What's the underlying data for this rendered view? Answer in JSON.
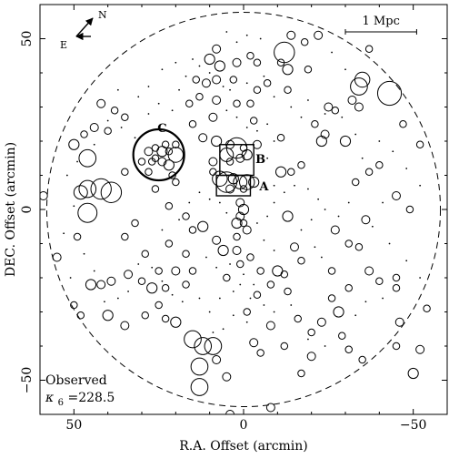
{
  "chart_data": {
    "type": "scatter",
    "xlabel": "R.A. Offset (arcmin)",
    "ylabel": "DEC. Offset (arcmin)",
    "xlim": [
      60,
      -60
    ],
    "ylim": [
      -60,
      60
    ],
    "x_ticks": [
      50,
      0,
      -50
    ],
    "y_ticks": [
      50,
      0,
      -50
    ],
    "x_tick_labels": [
      "50",
      "0",
      "−50"
    ],
    "y_tick_labels": [
      "50",
      "0",
      "−50"
    ],
    "grid": false,
    "compass": {
      "north": "N",
      "east": "E"
    },
    "scale_bar": {
      "label": "1 Mpc",
      "x_start": -30,
      "x_end": -51,
      "y": 52
    },
    "boundary_circle": {
      "center": [
        0,
        0
      ],
      "radius": 58
    },
    "observed_label": "Observed",
    "kappa_label": "κ",
    "kappa_subscript": "6",
    "kappa_value": "=228.5",
    "labeled_structures": [
      {
        "name": "A",
        "x": -6,
        "y": 7
      },
      {
        "name": "B",
        "x": -5,
        "y": 15
      },
      {
        "name": "C",
        "x": 24,
        "y": 24
      }
    ],
    "highlight_circle_c": {
      "x": 25,
      "y": 16,
      "r": 7.5
    },
    "boxes": [
      {
        "name": "A-box",
        "x1": 8,
        "x2": -2,
        "y1": 10,
        "y2": 4
      },
      {
        "name": "B-box",
        "x1": 7,
        "x2": -3,
        "y1": 19,
        "y2": 10
      }
    ],
    "circles": [
      [
        8,
        20,
        1.5
      ],
      [
        4,
        19,
        1.2
      ],
      [
        2,
        18,
        3.0
      ],
      [
        0,
        18,
        1.0
      ],
      [
        5,
        16,
        2.0
      ],
      [
        1,
        15,
        1.2
      ],
      [
        -1,
        16,
        1.5
      ],
      [
        7,
        9,
        2.2
      ],
      [
        5,
        8,
        3.0
      ],
      [
        3,
        9,
        1.5
      ],
      [
        1,
        8,
        2.0
      ],
      [
        -1,
        8,
        2.2
      ],
      [
        -3,
        8,
        1.5
      ],
      [
        4,
        6,
        1.2
      ],
      [
        0,
        6,
        1.0
      ],
      [
        1,
        2,
        1.2
      ],
      [
        0,
        0,
        1.5
      ],
      [
        1,
        -2,
        1.2
      ],
      [
        2,
        -4,
        1.5
      ],
      [
        0,
        -4,
        1.0
      ],
      [
        -1,
        -6,
        1.2
      ],
      [
        2,
        -8,
        1.0
      ],
      [
        28,
        17,
        1.2
      ],
      [
        26,
        18,
        1.0
      ],
      [
        24,
        17,
        1.5
      ],
      [
        22,
        17,
        1.0
      ],
      [
        26,
        15,
        1.0
      ],
      [
        24,
        14,
        1.2
      ],
      [
        22,
        13,
        1.5
      ],
      [
        20,
        16,
        2.2
      ],
      [
        23,
        19,
        1.0
      ],
      [
        27,
        14,
        1.0
      ],
      [
        20,
        19,
        1.0
      ],
      [
        46,
        6,
        2.5
      ],
      [
        48,
        5,
        2.0
      ],
      [
        42,
        6,
        3.0
      ],
      [
        39,
        5,
        3.0
      ],
      [
        46,
        -1,
        2.8
      ],
      [
        46,
        15,
        2.5
      ],
      [
        50,
        19,
        1.5
      ],
      [
        47,
        22,
        1.0
      ],
      [
        44,
        24,
        1.2
      ],
      [
        40,
        23,
        1.0
      ],
      [
        42,
        31,
        1.2
      ],
      [
        38,
        29,
        1.0
      ],
      [
        35,
        27,
        1.0
      ],
      [
        59,
        4,
        1.2
      ],
      [
        55,
        -14,
        1.2
      ],
      [
        49,
        -8,
        1.0
      ],
      [
        45,
        -22,
        1.5
      ],
      [
        42,
        -22,
        1.2
      ],
      [
        39,
        -21,
        1.2
      ],
      [
        34,
        -19,
        1.2
      ],
      [
        30,
        -21,
        1.0
      ],
      [
        27,
        -23,
        1.5
      ],
      [
        23,
        -23,
        1.0
      ],
      [
        40,
        -31,
        1.5
      ],
      [
        35,
        -34,
        1.2
      ],
      [
        29,
        -31,
        1.0
      ],
      [
        25,
        -28,
        1.0
      ],
      [
        23,
        -32,
        1.0
      ],
      [
        48,
        -31,
        1.0
      ],
      [
        50,
        -28,
        1.0
      ],
      [
        15,
        -38,
        2.5
      ],
      [
        12,
        -40,
        2.5
      ],
      [
        9,
        -40,
        2.5
      ],
      [
        20,
        -33,
        1.5
      ],
      [
        13,
        -46,
        2.5
      ],
      [
        13,
        -52,
        2.5
      ],
      [
        8,
        -44,
        1.2
      ],
      [
        5,
        -49,
        1.2
      ],
      [
        4,
        -60,
        1.2
      ],
      [
        -8,
        -58,
        1.2
      ],
      [
        -17,
        -48,
        1.0
      ],
      [
        -20,
        -43,
        1.2
      ],
      [
        -31,
        -41,
        1.0
      ],
      [
        -35,
        -44,
        1.0
      ],
      [
        -45,
        -40,
        1.0
      ],
      [
        -50,
        -48,
        1.5
      ],
      [
        -52,
        -41,
        1.2
      ],
      [
        -46,
        -33,
        1.2
      ],
      [
        -54,
        -29,
        1.0
      ],
      [
        -45,
        -23,
        1.0
      ],
      [
        -40,
        -21,
        1.0
      ],
      [
        -45,
        -20,
        1.0
      ],
      [
        -37,
        -18,
        1.2
      ],
      [
        -31,
        -23,
        1.0
      ],
      [
        -28,
        -30,
        1.5
      ],
      [
        -26,
        -26,
        1.0
      ],
      [
        -23,
        -33,
        1.2
      ],
      [
        -20,
        -36,
        1.0
      ],
      [
        -29,
        -37,
        1.0
      ],
      [
        -13,
        -24,
        1.0
      ],
      [
        -8,
        -34,
        1.2
      ],
      [
        -3,
        -39,
        1.2
      ],
      [
        -5,
        -42,
        1.0
      ],
      [
        -12,
        -40,
        1.0
      ],
      [
        -16,
        -32,
        1.0
      ],
      [
        15,
        25,
        1.0
      ],
      [
        12,
        21,
        1.2
      ],
      [
        8,
        32,
        1.2
      ],
      [
        13,
        33,
        1.0
      ],
      [
        16,
        31,
        1.0
      ],
      [
        8,
        38,
        1.2
      ],
      [
        7,
        42,
        1.5
      ],
      [
        2,
        43,
        1.2
      ],
      [
        -2,
        45,
        1.0
      ],
      [
        -4,
        43,
        1.0
      ],
      [
        -11,
        43,
        1.0
      ],
      [
        -13,
        35,
        1.0
      ],
      [
        -13,
        41,
        1.5
      ],
      [
        -12,
        46,
        3.0
      ],
      [
        -14,
        51,
        1.2
      ],
      [
        -18,
        49,
        1.0
      ],
      [
        -22,
        51,
        1.2
      ],
      [
        -25,
        30,
        1.2
      ],
      [
        -21,
        25,
        1.0
      ],
      [
        -24,
        22,
        1.2
      ],
      [
        -23,
        20,
        1.5
      ],
      [
        -30,
        20,
        1.5
      ],
      [
        -27,
        29,
        1.0
      ],
      [
        -32,
        32,
        1.2
      ],
      [
        -34,
        30,
        1.2
      ],
      [
        -34,
        36,
        2.5
      ],
      [
        -35,
        38,
        2.2
      ],
      [
        -43,
        34,
        3.5
      ],
      [
        -37,
        47,
        1.0
      ],
      [
        -47,
        25,
        1.0
      ],
      [
        -52,
        19,
        1.0
      ],
      [
        -40,
        13,
        1.0
      ],
      [
        -37,
        11,
        1.0
      ],
      [
        -33,
        8,
        1.0
      ],
      [
        -45,
        4,
        1.2
      ],
      [
        -49,
        0,
        1.0
      ],
      [
        -36,
        -3,
        1.2
      ],
      [
        -27,
        -6,
        1.2
      ],
      [
        -31,
        -10,
        1.0
      ],
      [
        -34,
        -11,
        1.0
      ],
      [
        -26,
        -18,
        1.0
      ],
      [
        -17,
        -15,
        1.0
      ],
      [
        -15,
        -11,
        1.2
      ],
      [
        -13,
        -2,
        1.5
      ],
      [
        -11,
        11,
        1.5
      ],
      [
        -14,
        11,
        1.0
      ],
      [
        -17,
        13,
        1.0
      ],
      [
        -11,
        21,
        1.0
      ],
      [
        -4,
        19,
        1.2
      ],
      [
        -3,
        26,
        1.0
      ],
      [
        -2,
        31,
        1.0
      ],
      [
        -4,
        35,
        1.0
      ],
      [
        2,
        31,
        1.0
      ],
      [
        9,
        27,
        1.2
      ],
      [
        4,
        14,
        1.0
      ],
      [
        9,
        11,
        1.0
      ],
      [
        9,
        14,
        1.2
      ],
      [
        21,
        10,
        1.0
      ],
      [
        20,
        8,
        1.0
      ],
      [
        26,
        6,
        1.0
      ],
      [
        35,
        11,
        1.0
      ],
      [
        30,
        14,
        1.0
      ],
      [
        28,
        11,
        1.0
      ],
      [
        22,
        1,
        1.0
      ],
      [
        17,
        -2,
        1.0
      ],
      [
        12,
        -5,
        1.5
      ],
      [
        15,
        -6,
        1.0
      ],
      [
        8,
        -9,
        1.2
      ],
      [
        6,
        -12,
        1.5
      ],
      [
        2,
        -12,
        1.2
      ],
      [
        1,
        -16,
        1.0
      ],
      [
        -2,
        -14,
        1.0
      ],
      [
        -5,
        -18,
        1.0
      ],
      [
        -10,
        -18,
        1.5
      ],
      [
        -12,
        -19,
        1.0
      ],
      [
        -8,
        -22,
        1.0
      ],
      [
        -4,
        -25,
        1.0
      ],
      [
        -1,
        -30,
        1.0
      ],
      [
        5,
        -20,
        1.0
      ],
      [
        15,
        -18,
        1.0
      ],
      [
        20,
        -18,
        1.2
      ],
      [
        17,
        -22,
        1.0
      ],
      [
        17,
        -13,
        1.0
      ],
      [
        22,
        -10,
        1.0
      ],
      [
        25,
        -18,
        1.0
      ],
      [
        29,
        -13,
        1.0
      ],
      [
        35,
        -8,
        1.0
      ],
      [
        32,
        -4,
        1.0
      ],
      [
        10,
        44,
        1.5
      ],
      [
        8,
        47,
        1.2
      ],
      [
        3,
        38,
        1.0
      ],
      [
        11,
        37,
        1.2
      ],
      [
        14,
        38,
        1.0
      ],
      [
        -7,
        37,
        1.0
      ],
      [
        -19,
        41,
        1.0
      ]
    ],
    "dots": [
      [
        15,
        44
      ],
      [
        13,
        42
      ],
      [
        10,
        40
      ],
      [
        6,
        36
      ],
      [
        4,
        35
      ],
      [
        -1,
        37
      ],
      [
        -6,
        39
      ],
      [
        -9,
        33
      ],
      [
        -14,
        30
      ],
      [
        -17,
        27
      ],
      [
        -19,
        32
      ],
      [
        -24,
        28
      ],
      [
        -29,
        27
      ],
      [
        -33,
        22
      ],
      [
        -40,
        20
      ],
      [
        -44,
        17
      ],
      [
        -48,
        12
      ],
      [
        -52,
        7
      ],
      [
        -41,
        2
      ],
      [
        -38,
        -5
      ],
      [
        -43,
        -10
      ],
      [
        -48,
        -15
      ],
      [
        -52,
        -20
      ],
      [
        -41,
        -26
      ],
      [
        -36,
        -27
      ],
      [
        -33,
        -31
      ],
      [
        -24,
        -40
      ],
      [
        -19,
        -38
      ],
      [
        -14,
        -28
      ],
      [
        -9,
        -30
      ],
      [
        -6,
        -28
      ],
      [
        -3,
        -22
      ],
      [
        0,
        -19
      ],
      [
        3,
        -24
      ],
      [
        7,
        -26
      ],
      [
        10,
        -30
      ],
      [
        13,
        -26
      ],
      [
        18,
        -27
      ],
      [
        21,
        -25
      ],
      [
        24,
        -21
      ],
      [
        27,
        -17
      ],
      [
        31,
        -16
      ],
      [
        34,
        -24
      ],
      [
        37,
        -26
      ],
      [
        41,
        -27
      ],
      [
        44,
        -18
      ],
      [
        47,
        -13
      ],
      [
        51,
        -20
      ],
      [
        53,
        -7
      ],
      [
        50,
        1
      ],
      [
        52,
        10
      ],
      [
        49,
        14
      ],
      [
        44,
        19
      ],
      [
        40,
        26
      ],
      [
        36,
        24
      ],
      [
        32,
        21
      ],
      [
        28,
        28
      ],
      [
        25,
        31
      ],
      [
        21,
        29
      ],
      [
        19,
        35
      ],
      [
        17,
        39
      ],
      [
        20,
        43
      ],
      [
        24,
        41
      ],
      [
        28,
        36
      ],
      [
        31,
        33
      ],
      [
        37,
        35
      ],
      [
        5,
        29
      ],
      [
        2,
        27
      ],
      [
        -1,
        24
      ],
      [
        -4,
        23
      ],
      [
        -7,
        25
      ],
      [
        -9,
        20
      ],
      [
        -7,
        15
      ],
      [
        -9,
        7
      ],
      [
        -12,
        5
      ],
      [
        -15,
        7
      ],
      [
        -19,
        6
      ],
      [
        -22,
        3
      ],
      [
        -24,
        0
      ],
      [
        -20,
        -3
      ],
      [
        -17,
        -6
      ],
      [
        -21,
        -11
      ],
      [
        -23,
        -14
      ],
      [
        -9,
        -12
      ],
      [
        -6,
        -9
      ],
      [
        -4,
        -4
      ],
      [
        -7,
        -2
      ],
      [
        -9,
        2
      ],
      [
        5,
        -1
      ],
      [
        7,
        2
      ],
      [
        10,
        3
      ],
      [
        13,
        5
      ],
      [
        16,
        2
      ],
      [
        19,
        -3
      ],
      [
        24,
        -6
      ],
      [
        11,
        -14
      ],
      [
        8,
        -17
      ],
      [
        4,
        -16
      ],
      [
        1,
        -22
      ],
      [
        -2,
        -26
      ],
      [
        -1,
        -33
      ],
      [
        3,
        -31
      ],
      [
        6,
        -35
      ],
      [
        9,
        -36
      ],
      [
        2,
        49
      ],
      [
        -1,
        51
      ],
      [
        -5,
        50
      ],
      [
        5,
        52
      ],
      [
        -26,
        46
      ],
      [
        -30,
        41
      ],
      [
        -35,
        15
      ],
      [
        -31,
        2
      ],
      [
        -28,
        -2
      ]
    ]
  }
}
